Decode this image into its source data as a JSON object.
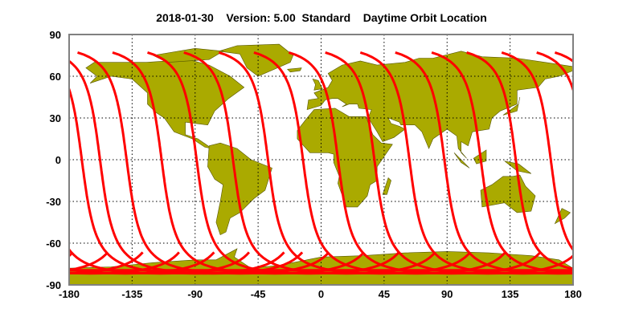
{
  "title": "2018-01-30    Version: 5.00  Standard    Daytime Orbit Location",
  "colors": {
    "land": "#aaaa00",
    "coast": "#555500",
    "orbit": "#ff0000",
    "frame": "#808080",
    "grid": "#000000"
  },
  "chart_data": {
    "type": "map",
    "projection": "equirectangular",
    "title": "2018-01-30    Version: 5.00  Standard    Daytime Orbit Location",
    "xlim": [
      -180,
      180
    ],
    "ylim": [
      -90,
      90
    ],
    "x_ticks": [
      "-180",
      "-135",
      "-90",
      "-45",
      "0",
      "45",
      "90",
      "135",
      "180"
    ],
    "y_ticks": [
      "90",
      "60",
      "30",
      "0",
      "-30",
      "-60",
      "-90"
    ],
    "grid": true,
    "grid_style": "dotted",
    "orbit_tracks": {
      "pass": "daytime descending",
      "start_latitude": 77,
      "min_latitude": -82,
      "start_longitudes": [
        -174,
        -149,
        -124,
        -98,
        -73,
        -48,
        -23,
        3,
        28,
        53,
        79,
        104,
        129,
        154,
        167
      ]
    }
  }
}
